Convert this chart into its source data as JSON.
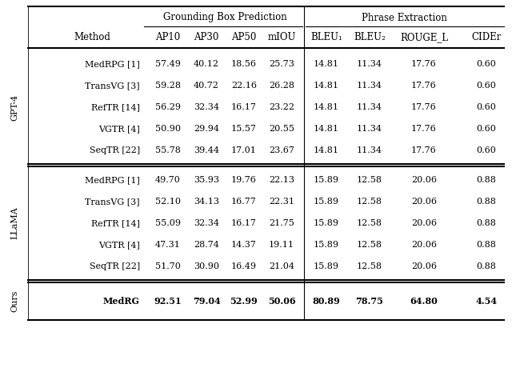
{
  "background_color": "#ffffff",
  "group_label1": "GPT-4",
  "group_label2": "LLaMA",
  "group_label3": "Ours",
  "header_group1": "Grounding Box Prediction",
  "header_group2": "Phrase Extraction",
  "col_headers": [
    "AP10",
    "AP30",
    "AP50",
    "mIOU",
    "BLEU₁",
    "BLEU₂",
    "ROUGE_L",
    "CIDEr"
  ],
  "rows_gpt4": [
    [
      "MedRPG [1]",
      "57.49",
      "40.12",
      "18.56",
      "25.73",
      "14.81",
      "11.34",
      "17.76",
      "0.60"
    ],
    [
      "TransVG [3]",
      "59.28",
      "40.72",
      "22.16",
      "26.28",
      "14.81",
      "11.34",
      "17.76",
      "0.60"
    ],
    [
      "RefTR [14]",
      "56.29",
      "32.34",
      "16.17",
      "23.22",
      "14.81",
      "11.34",
      "17.76",
      "0.60"
    ],
    [
      "VGTR [4]",
      "50.90",
      "29.94",
      "15.57",
      "20.55",
      "14.81",
      "11.34",
      "17.76",
      "0.60"
    ],
    [
      "SeqTR [22]",
      "55.78",
      "39.44",
      "17.01",
      "23.67",
      "14.81",
      "11.34",
      "17.76",
      "0.60"
    ]
  ],
  "rows_llama": [
    [
      "MedRPG [1]",
      "49.70",
      "35.93",
      "19.76",
      "22.13",
      "15.89",
      "12.58",
      "20.06",
      "0.88"
    ],
    [
      "TransVG [3]",
      "52.10",
      "34.13",
      "16.77",
      "22.31",
      "15.89",
      "12.58",
      "20.06",
      "0.88"
    ],
    [
      "RefTR [14]",
      "55.09",
      "32.34",
      "16.17",
      "21.75",
      "15.89",
      "12.58",
      "20.06",
      "0.88"
    ],
    [
      "VGTR [4]",
      "47.31",
      "28.74",
      "14.37",
      "19.11",
      "15.89",
      "12.58",
      "20.06",
      "0.88"
    ],
    [
      "SeqTR [22]",
      "51.70",
      "30.90",
      "16.49",
      "21.04",
      "15.89",
      "12.58",
      "20.06",
      "0.88"
    ]
  ],
  "row_ours": [
    "MedRG",
    "92.51",
    "79.04",
    "52.99",
    "50.06",
    "80.89",
    "78.75",
    "64.80",
    "4.54"
  ],
  "fs": 8.0,
  "fs_hdr": 8.5
}
